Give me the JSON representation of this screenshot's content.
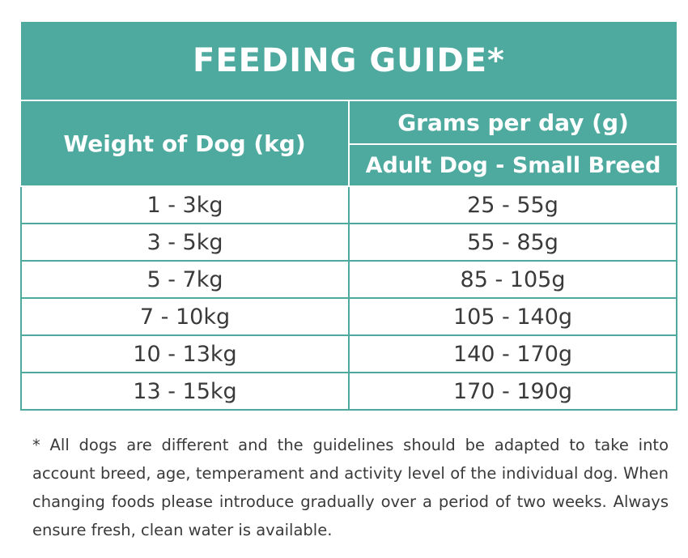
{
  "table": {
    "title": "FEEDING GUIDE*",
    "weight_header": "Weight of Dog (kg)",
    "grams_header": "Grams per day (g)",
    "breed_header": "Adult Dog - Small Breed",
    "rows": [
      {
        "weight": "1 - 3kg",
        "grams": "25 - 55g"
      },
      {
        "weight": "3 - 5kg",
        "grams": "55 - 85g"
      },
      {
        "weight": "5 - 7kg",
        "grams": "85 - 105g"
      },
      {
        "weight": "7 - 10kg",
        "grams": "105 - 140g"
      },
      {
        "weight": "10 - 13kg",
        "grams": "140 - 170g"
      },
      {
        "weight": "13 - 15kg",
        "grams": "170 - 190g"
      }
    ]
  },
  "footnote": "* All dogs are different and the guidelines should be adapted to take into account breed, age, temperament and activity level of the individual dog. When changing foods please introduce gradually over a period of two weeks. Always ensure fresh, clean water is available.",
  "colors": {
    "header_background": "#4ea99f",
    "header_text": "#ffffff",
    "body_text": "#3a3a3a"
  }
}
